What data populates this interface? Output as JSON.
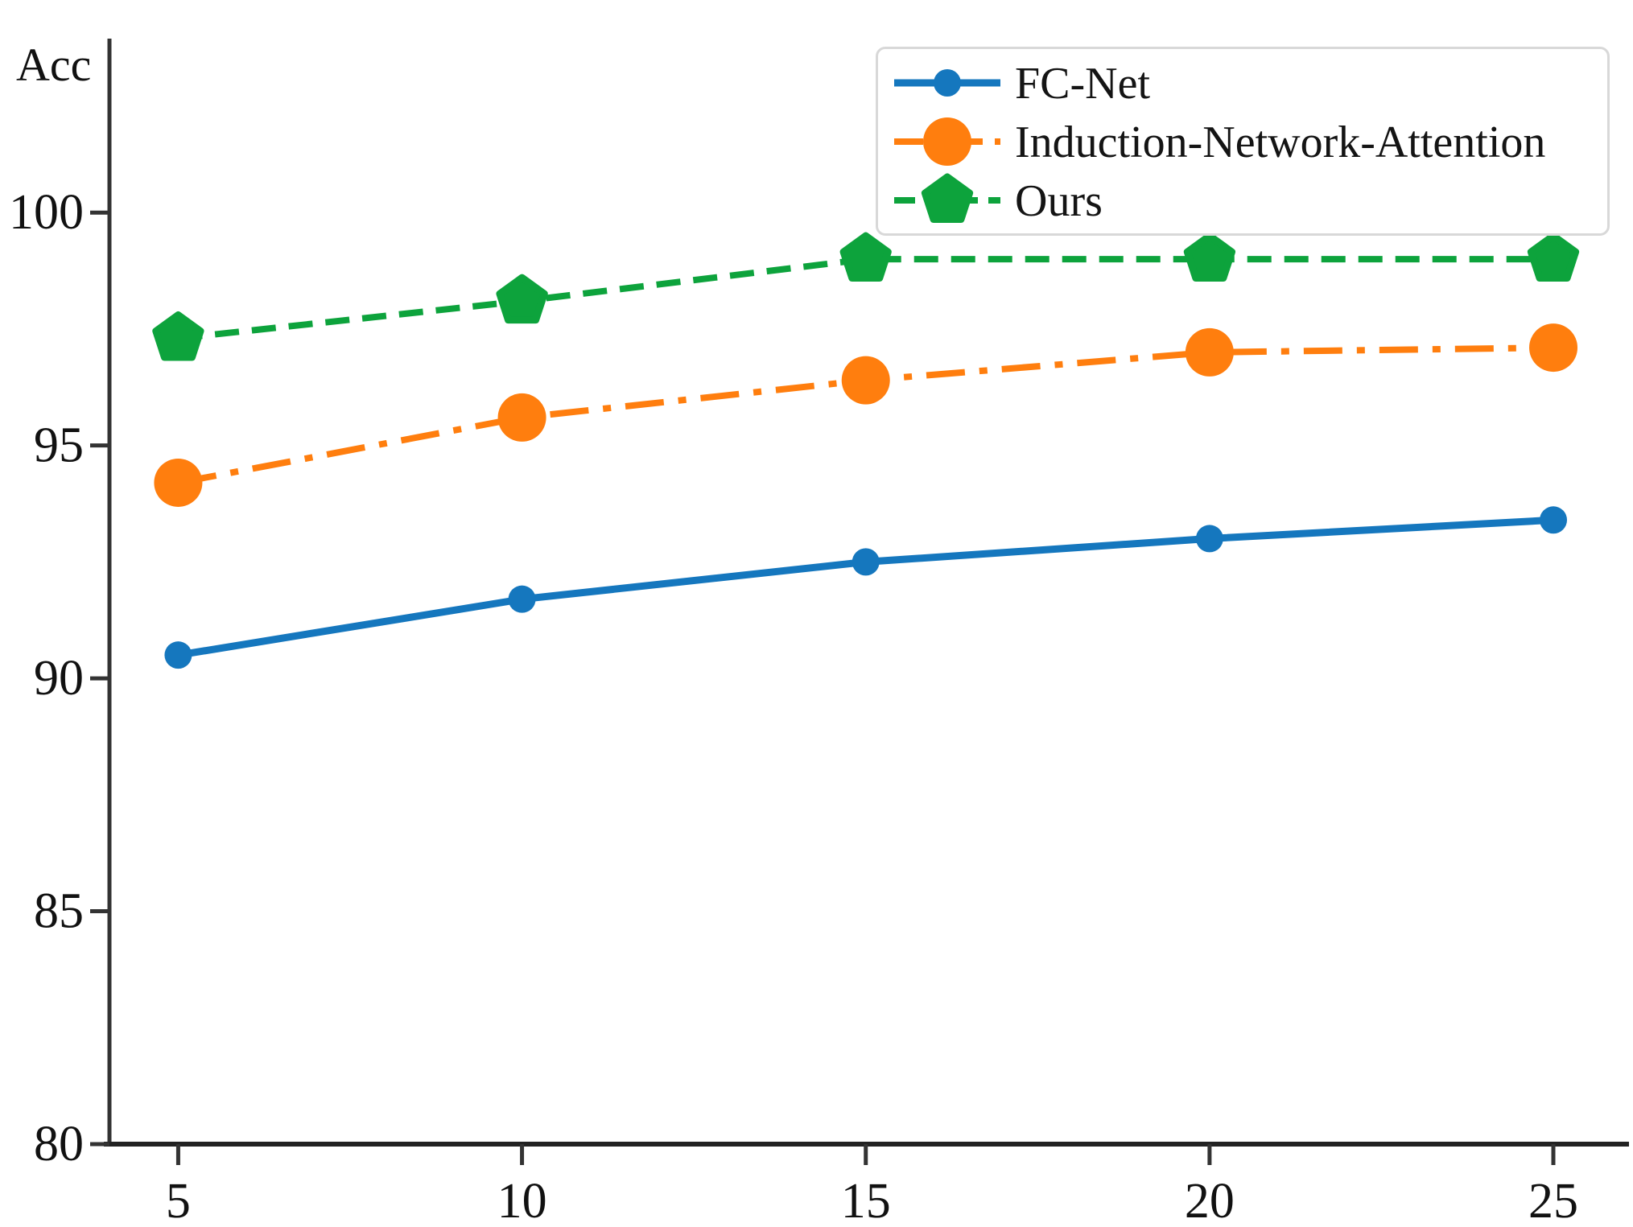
{
  "figure": {
    "background": "#ffffff",
    "axis_color": "#333333",
    "bottom_axis_color": "#222222",
    "legend_border_color": "#d8d8d8"
  },
  "chart_data": {
    "type": "line",
    "title": "",
    "ylabel": "Acc",
    "xlabel": "",
    "x": [
      5,
      10,
      15,
      20,
      25
    ],
    "x_tick_labels": [
      "5",
      "10",
      "15",
      "20",
      "25"
    ],
    "y_ticks": [
      80,
      85,
      90,
      95,
      100
    ],
    "y_tick_labels": [
      "80",
      "85",
      "90",
      "95",
      "100"
    ],
    "xlim": [
      4,
      26.1
    ],
    "ylim": [
      80,
      103.7
    ],
    "grid": false,
    "legend_position": "upper right",
    "series": [
      {
        "name": "FC-Net",
        "values": [
          90.5,
          91.7,
          92.5,
          93.0,
          93.4
        ],
        "color": "#1577be",
        "line_style": "solid",
        "marker": "circle-small"
      },
      {
        "name": "Induction-Network-Attention",
        "values": [
          94.2,
          95.6,
          96.4,
          97.0,
          97.1
        ],
        "color": "#ff7e0e",
        "line_style": "dash-dot",
        "marker": "circle-large"
      },
      {
        "name": "Ours",
        "values": [
          97.3,
          98.1,
          99.0,
          99.0,
          99.0
        ],
        "color": "#0da33c",
        "line_style": "dashed",
        "marker": "pentagon"
      }
    ]
  }
}
